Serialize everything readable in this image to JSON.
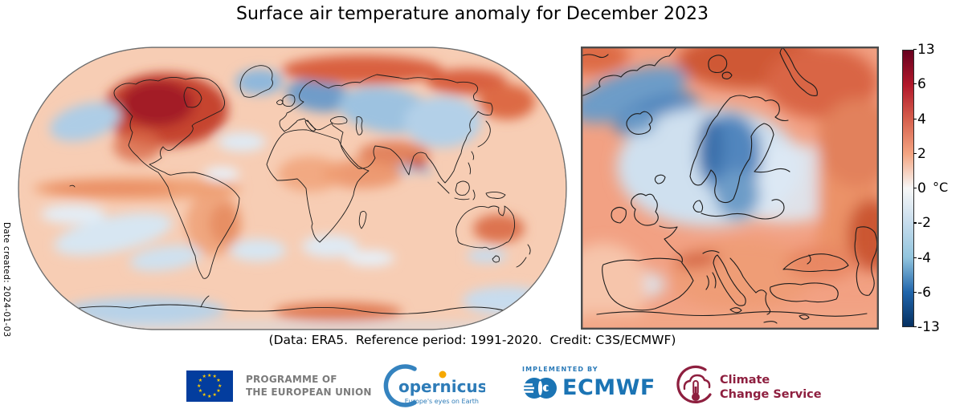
{
  "title": "Surface air temperature anomaly for December 2023",
  "caption": "(Data: ERA5.  Reference period: 1991-2020.  Credit: C3S/ECMWF)",
  "date_note": "Date created: 2024-01-03",
  "colorbar": {
    "unit": "°C",
    "min": -13,
    "max": 13,
    "ticks": [
      "13",
      "6",
      "4",
      "2",
      "0",
      "-2",
      "-4",
      "-6",
      "-13"
    ],
    "gradient_top_to_bottom": [
      "#67001f",
      "#b2182b",
      "#d6604d",
      "#f4a582",
      "#f7f7f7",
      "#c6dcec",
      "#92c5de",
      "#2166ac",
      "#053061"
    ]
  },
  "logos": {
    "eu": {
      "line1": "PROGRAMME OF",
      "line2": "THE EUROPEAN UNION",
      "flag_blue": "#033d9e",
      "star_yellow": "#ffcc00"
    },
    "copernicus": {
      "wordmark": "opernicus",
      "tagline": "Europe's eyes on Earth",
      "blue": "#2e7cb8",
      "orange": "#f6a800"
    },
    "ecmwf": {
      "pretext": "IMPLEMENTED BY",
      "wordmark": "ECMWF",
      "blue": "#1b74b4"
    },
    "c3s": {
      "line1": "Climate",
      "line2": "Change Service",
      "maroon": "#8e1f3f"
    }
  },
  "chart_data": {
    "type": "heatmap",
    "title": "Surface air temperature anomaly for December 2023",
    "variable": "Surface air temperature anomaly",
    "period": "December 2023",
    "reference_period": "1991-2020",
    "data_source": "ERA5",
    "credit": "C3S/ECMWF",
    "unit": "°C",
    "colorbar": {
      "orientation": "vertical",
      "range": [
        -13,
        13
      ],
      "tick_values": [
        13,
        6,
        4,
        2,
        0,
        -2,
        -4,
        -6,
        -13
      ],
      "palette": "diverging red-blue (RdBu_r), nonlinear tick spacing",
      "stops_top_to_bottom": [
        "#67001f",
        "#b2182b",
        "#d6604d",
        "#f4a582",
        "#f7f7f7",
        "#c6dcec",
        "#92c5de",
        "#2166ac",
        "#053061"
      ]
    },
    "panels": [
      {
        "name": "global",
        "projection": "Robinson",
        "extent": "world",
        "notable_anomalies": [
          {
            "region": "Northern Canada / Canadian Arctic",
            "anomaly_c": 10
          },
          {
            "region": "Alaska and Bering Sea",
            "anomaly_c": -3
          },
          {
            "region": "Central/east Greenland",
            "anomaly_c": -3
          },
          {
            "region": "Scandinavia and northwest Siberia",
            "anomaly_c": -6
          },
          {
            "region": "Arctic coast of Siberia",
            "anomaly_c": 5
          },
          {
            "region": "Central Asia (mixed warm/cold patches)",
            "anomaly_c": 3
          },
          {
            "region": "Equatorial central Pacific (El Nino band)",
            "anomaly_c": 2
          },
          {
            "region": "Interior Australia",
            "anomaly_c": 3
          },
          {
            "region": "Southeast Pacific patches",
            "anomaly_c": -1
          },
          {
            "region": "Most remaining oceans and tropics",
            "anomaly_c": 1
          },
          {
            "region": "Antarctica (mixed)",
            "anomaly_c": 0
          }
        ]
      },
      {
        "name": "europe",
        "projection": "rectangular detail panel",
        "extent": "Europe and North Atlantic",
        "notable_anomalies": [
          {
            "region": "Scandinavia",
            "anomaly_c": -5
          },
          {
            "region": "Nordic seas / Iceland / SE of Greenland",
            "anomaly_c": -4
          },
          {
            "region": "Arctic Ocean north of Scandinavia",
            "anomaly_c": 5
          },
          {
            "region": "Northeast corner (Arctic Russia)",
            "anomaly_c": 5
          },
          {
            "region": "Central and southeastern Europe",
            "anomaly_c": 3
          },
          {
            "region": "Alpine region",
            "anomaly_c": 4
          },
          {
            "region": "Central Iberia",
            "anomaly_c": -1
          },
          {
            "region": "East of Black Sea / Caspian region",
            "anomaly_c": 5
          }
        ]
      }
    ]
  }
}
